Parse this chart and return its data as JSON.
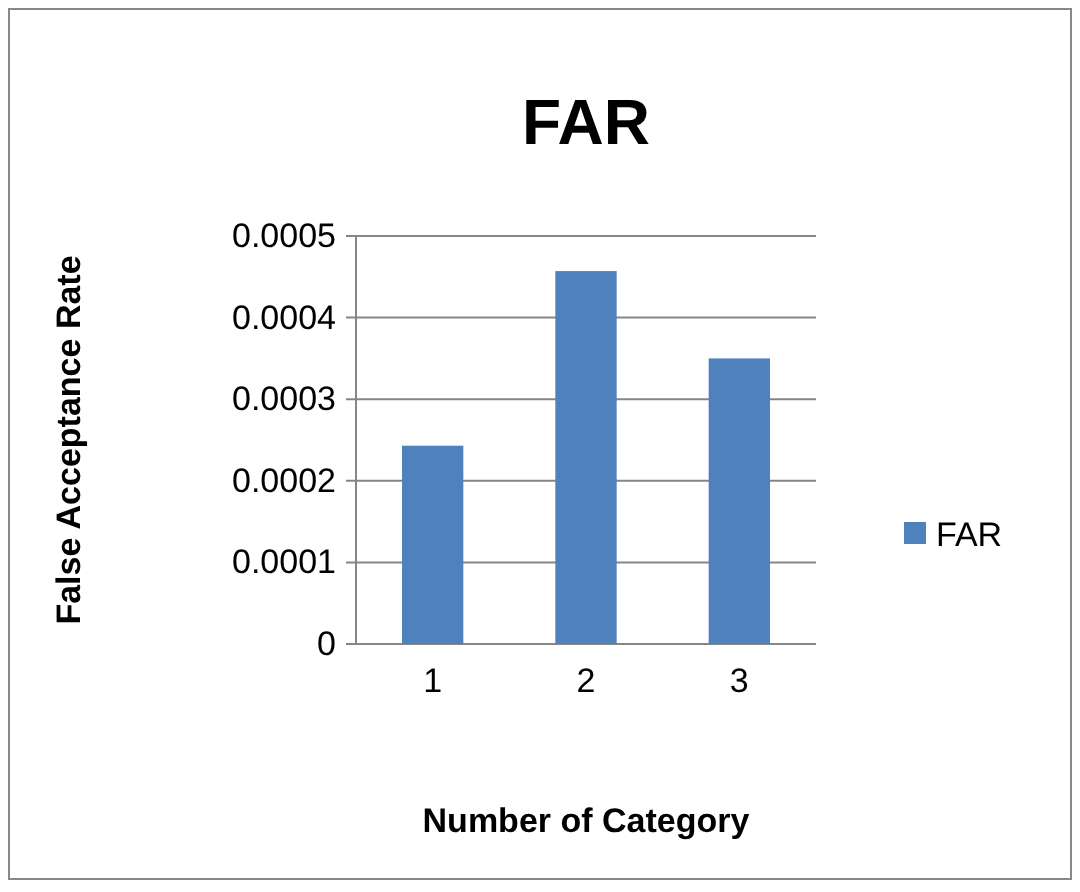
{
  "chart_data": {
    "type": "bar",
    "title": "FAR",
    "xlabel": "Number of Category",
    "ylabel": "False Acceptance Rate",
    "categories": [
      "1",
      "2",
      "3"
    ],
    "series": [
      {
        "name": "FAR",
        "color": "#4f81bd",
        "values": [
          0.000243,
          0.000457,
          0.00035
        ]
      }
    ],
    "ylim": [
      0,
      0.0005
    ],
    "yticks": [
      0,
      0.0001,
      0.0002,
      0.0003,
      0.0004,
      0.0005
    ],
    "grid": "y",
    "legend": "right"
  }
}
